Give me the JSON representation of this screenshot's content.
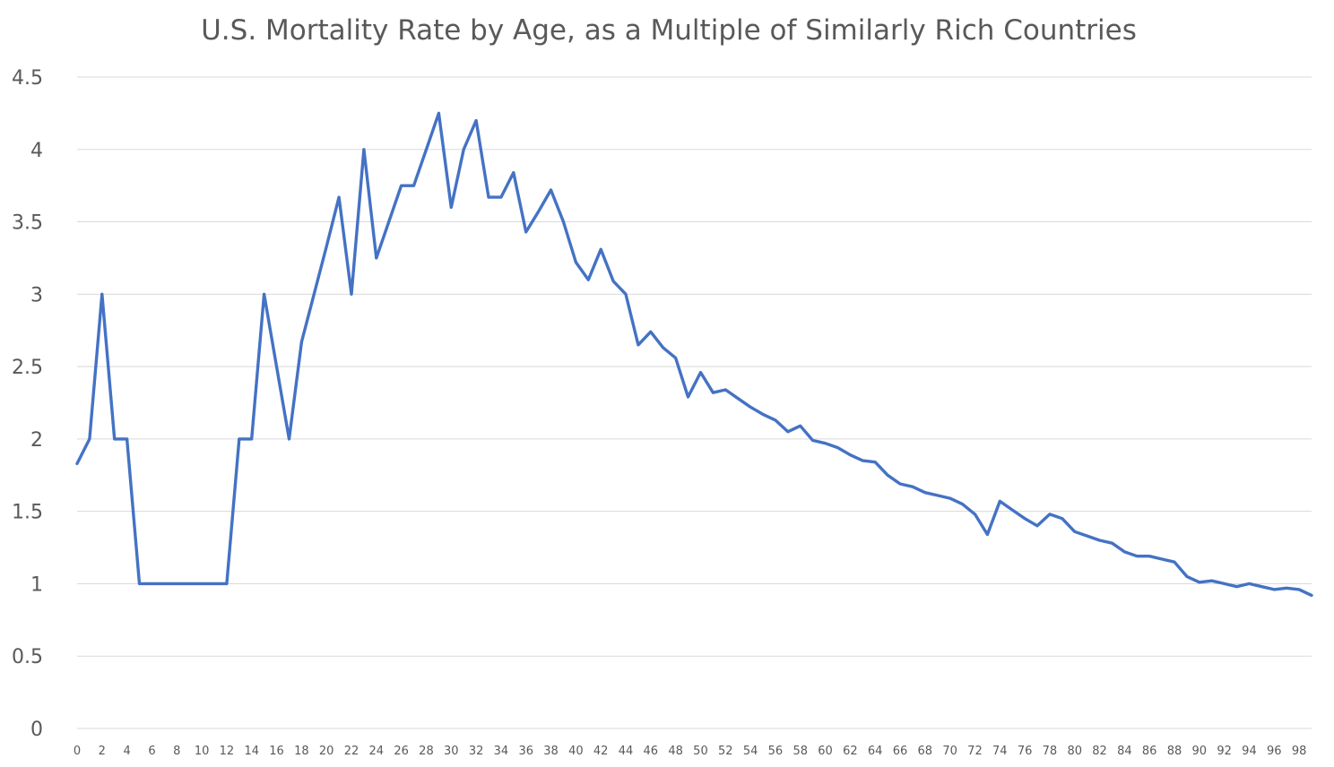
{
  "chart_data": {
    "type": "line",
    "title": "U.S. Mortality Rate by Age, as a Multiple of Similarly Rich Countries",
    "xlabel": "",
    "ylabel": "",
    "ylim": [
      0,
      4.5
    ],
    "xlim": [
      0,
      99
    ],
    "grid": true,
    "legend": "none",
    "y_ticks": [
      "0",
      "0.5",
      "1",
      "1.5",
      "2",
      "2.5",
      "3",
      "3.5",
      "4",
      "4.5"
    ],
    "y_tick_values": [
      0,
      0.5,
      1,
      1.5,
      2,
      2.5,
      3,
      3.5,
      4,
      4.5
    ],
    "x_ticks": [
      "0",
      "2",
      "4",
      "6",
      "8",
      "10",
      "12",
      "14",
      "16",
      "18",
      "20",
      "22",
      "24",
      "26",
      "28",
      "30",
      "32",
      "34",
      "36",
      "38",
      "40",
      "42",
      "44",
      "46",
      "48",
      "50",
      "52",
      "54",
      "56",
      "58",
      "60",
      "62",
      "64",
      "66",
      "68",
      "70",
      "72",
      "74",
      "76",
      "78",
      "80",
      "82",
      "84",
      "86",
      "88",
      "90",
      "92",
      "94",
      "96",
      "98"
    ],
    "x": [
      0,
      1,
      2,
      3,
      4,
      5,
      6,
      7,
      8,
      9,
      10,
      11,
      12,
      13,
      14,
      15,
      16,
      17,
      18,
      19,
      20,
      21,
      22,
      23,
      24,
      25,
      26,
      27,
      28,
      29,
      30,
      31,
      32,
      33,
      34,
      35,
      36,
      37,
      38,
      39,
      40,
      41,
      42,
      43,
      44,
      45,
      46,
      47,
      48,
      49,
      50,
      51,
      52,
      53,
      54,
      55,
      56,
      57,
      58,
      59,
      60,
      61,
      62,
      63,
      64,
      65,
      66,
      67,
      68,
      69,
      70,
      71,
      72,
      73,
      74,
      75,
      76,
      77,
      78,
      79,
      80,
      81,
      82,
      83,
      84,
      85,
      86,
      87,
      88,
      89,
      90,
      91,
      92,
      93,
      94,
      95,
      96,
      97,
      98,
      99
    ],
    "series": [
      {
        "color": "#4472c4",
        "values": [
          1.83,
          2.0,
          3.0,
          2.0,
          2.0,
          1.0,
          1.0,
          1.0,
          1.0,
          1.0,
          1.0,
          1.0,
          1.0,
          2.0,
          2.0,
          3.0,
          2.5,
          2.0,
          2.67,
          3.0,
          3.33,
          3.67,
          3.0,
          4.0,
          3.25,
          3.5,
          3.75,
          3.75,
          4.0,
          4.25,
          3.6,
          4.0,
          4.2,
          3.67,
          3.67,
          3.84,
          3.43,
          3.57,
          3.72,
          3.5,
          3.22,
          3.1,
          3.31,
          3.09,
          3.0,
          2.65,
          2.74,
          2.63,
          2.56,
          2.29,
          2.46,
          2.32,
          2.34,
          2.28,
          2.22,
          2.17,
          2.13,
          2.05,
          2.09,
          1.99,
          1.97,
          1.94,
          1.89,
          1.85,
          1.84,
          1.75,
          1.69,
          1.67,
          1.63,
          1.61,
          1.59,
          1.55,
          1.48,
          1.34,
          1.57,
          1.51,
          1.45,
          1.4,
          1.48,
          1.45,
          1.36,
          1.33,
          1.3,
          1.28,
          1.22,
          1.19,
          1.19,
          1.17,
          1.15,
          1.05,
          1.01,
          1.02,
          1.0,
          0.98,
          1.0,
          0.98,
          0.96,
          0.97,
          0.96,
          0.92
        ]
      }
    ]
  }
}
